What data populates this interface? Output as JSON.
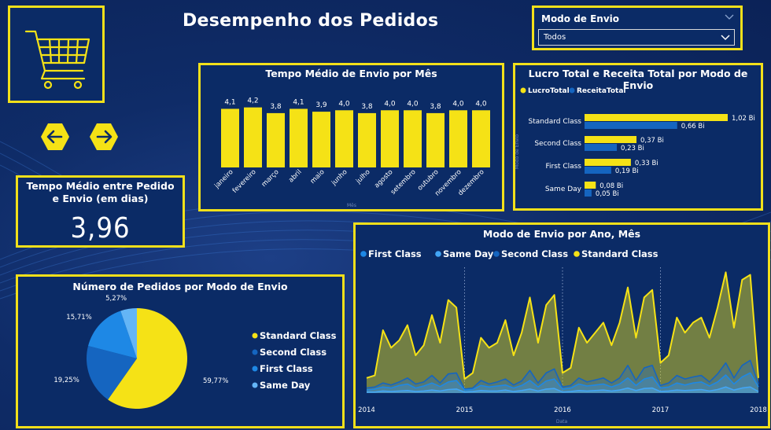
{
  "title": "Desempenho dos Pedidos",
  "colors": {
    "border": "#f2e01a",
    "yellow": "#f5e216",
    "blue_dark": "#1565c0",
    "blue_mid": "#1e88e5",
    "blue_light": "#42a5f5",
    "blue_pale": "#64b5f6",
    "panel_bg": "#0b2b66"
  },
  "icons": {
    "cart": "shopping-cart-icon",
    "prev": "arrow-left-icon",
    "next": "arrow-right-icon",
    "dropdown": "chevron-down-icon"
  },
  "slicer": {
    "label": "Modo de Envio",
    "value": "Todos"
  },
  "kpi": {
    "label": "Tempo Médio entre Pedido e Envio (em dias)",
    "value": "3,96"
  },
  "chart_data": [
    {
      "id": "monthly",
      "type": "bar",
      "title": "Tempo Médio de Envio por Mês",
      "xlabel": "Mês",
      "ylabel": "",
      "ylim": [
        0,
        4.4
      ],
      "categories": [
        "janeiro",
        "fevereiro",
        "março",
        "abril",
        "maio",
        "junho",
        "julho",
        "agosto",
        "setembro",
        "outubro",
        "novembro",
        "dezembro"
      ],
      "values": [
        4.1,
        4.2,
        3.8,
        4.1,
        3.9,
        4.0,
        3.8,
        4.0,
        4.0,
        3.8,
        4.0,
        4.0
      ],
      "labels": [
        "4,1",
        "4,2",
        "3,8",
        "4,1",
        "3,9",
        "4,0",
        "3,8",
        "4,0",
        "4,0",
        "3,8",
        "4,0",
        "4,0"
      ]
    },
    {
      "id": "profit",
      "type": "bar",
      "orientation": "horizontal",
      "title": "Lucro Total e Receita Total por Modo de Envio",
      "ylabel": "Modo de Envio",
      "xlim": [
        0,
        1.02
      ],
      "categories": [
        "Standard Class",
        "Second Class",
        "First Class",
        "Same Day"
      ],
      "series": [
        {
          "name": "LucroTotal",
          "values": [
            1.02,
            0.37,
            0.33,
            0.08
          ],
          "labels": [
            "1,02 Bi",
            "0,37 Bi",
            "0,33 Bi",
            "0,08 Bi"
          ]
        },
        {
          "name": "ReceitaTotal",
          "values": [
            0.66,
            0.23,
            0.19,
            0.05
          ],
          "labels": [
            "0,66 Bi",
            "0,23 Bi",
            "0,19 Bi",
            "0,05 Bi"
          ]
        }
      ]
    },
    {
      "id": "pie",
      "type": "pie",
      "title": "Número de Pedidos por Modo de Envio",
      "categories": [
        "Standard Class",
        "Second Class",
        "First Class",
        "Same Day"
      ],
      "values": [
        59.77,
        19.25,
        15.71,
        5.27
      ],
      "labels": [
        "59,77%",
        "19,25%",
        "15,71%",
        "5,27%"
      ]
    },
    {
      "id": "area",
      "type": "area",
      "title": "Modo de Envio por Ano, Mês",
      "xlabel": "Data",
      "grid": "vertical dotted at year boundaries",
      "x_ticks": [
        "2014",
        "2015",
        "2016",
        "2017",
        "2018"
      ],
      "x_start": "2014-01",
      "ylim": [
        0,
        250
      ],
      "series": [
        {
          "name": "First Class",
          "values": [
            6,
            8,
            12,
            10,
            15,
            18,
            10,
            14,
            20,
            13,
            22,
            25,
            6,
            7,
            15,
            12,
            14,
            16,
            10,
            15,
            25,
            12,
            24,
            28,
            8,
            10,
            18,
            14,
            16,
            18,
            12,
            18,
            30,
            15,
            28,
            32,
            10,
            12,
            20,
            16,
            20,
            22,
            14,
            22,
            36,
            18,
            32,
            40,
            12
          ]
        },
        {
          "name": "Same Day",
          "values": [
            2,
            2,
            4,
            3,
            4,
            5,
            3,
            4,
            6,
            4,
            7,
            8,
            2,
            3,
            5,
            4,
            4,
            6,
            3,
            5,
            8,
            4,
            8,
            9,
            2,
            3,
            5,
            4,
            5,
            6,
            4,
            6,
            10,
            5,
            9,
            10,
            3,
            4,
            6,
            5,
            6,
            7,
            4,
            7,
            12,
            6,
            10,
            12,
            3
          ]
        },
        {
          "name": "Second Class",
          "values": [
            10,
            12,
            20,
            16,
            22,
            30,
            18,
            22,
            35,
            20,
            38,
            40,
            8,
            10,
            25,
            18,
            22,
            28,
            16,
            24,
            45,
            20,
            40,
            48,
            12,
            15,
            30,
            22,
            26,
            30,
            20,
            30,
            55,
            25,
            50,
            55,
            15,
            20,
            35,
            28,
            32,
            35,
            22,
            38,
            60,
            30,
            55,
            65,
            18
          ]
        },
        {
          "name": "Standard Class",
          "values": [
            30,
            35,
            125,
            90,
            105,
            135,
            75,
            95,
            155,
            100,
            185,
            170,
            28,
            40,
            110,
            90,
            100,
            145,
            75,
            120,
            190,
            100,
            175,
            195,
            40,
            50,
            130,
            100,
            120,
            140,
            95,
            140,
            210,
            110,
            190,
            205,
            60,
            75,
            150,
            120,
            140,
            150,
            110,
            170,
            240,
            130,
            225,
            235,
            30
          ]
        }
      ]
    }
  ]
}
